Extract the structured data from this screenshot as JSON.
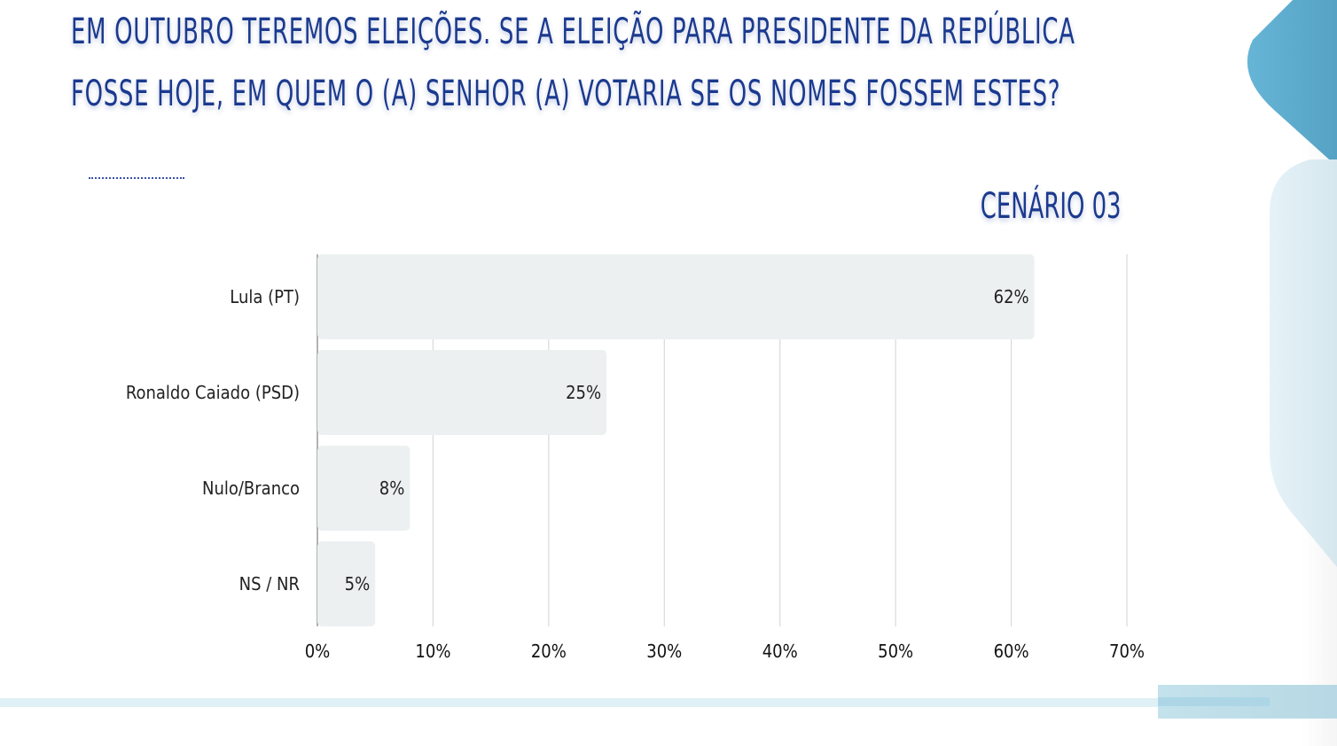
{
  "header": {
    "title_line_1": "EM OUTUBRO TEREMOS ELEIÇÕES. SE A ELEIÇÃO PARA PRESIDENTE DA REPÚBLICA",
    "title_line_2": "FOSSE HOJE, EM QUEM O (A) SENHOR (A) VOTARIA SE OS NOMES FOSSEM ESTES?",
    "scenario": "CENÁRIO 03"
  },
  "colors": {
    "title": "#1b3a8f",
    "bar": "#ecf0f1",
    "grid": "#d9d9d9",
    "accent_dark": "#5aa9cb",
    "accent_light": "#dff0f6"
  },
  "chart_data": {
    "type": "bar",
    "orientation": "horizontal",
    "title": "CENÁRIO 03",
    "categories": [
      "Lula (PT)",
      "Ronaldo Caiado (PSD)",
      "Nulo/Branco",
      "NS / NR"
    ],
    "values": [
      62,
      25,
      8,
      5
    ],
    "value_labels": [
      "62%",
      "25%",
      "8%",
      "5%"
    ],
    "xlim": [
      0,
      70
    ],
    "xticks": [
      0,
      10,
      20,
      30,
      40,
      50,
      60,
      70
    ],
    "xtick_labels": [
      "0%",
      "10%",
      "20%",
      "30%",
      "40%",
      "50%",
      "60%",
      "70%"
    ],
    "xlabel": "",
    "ylabel": "",
    "grid": true,
    "legend": "none"
  }
}
